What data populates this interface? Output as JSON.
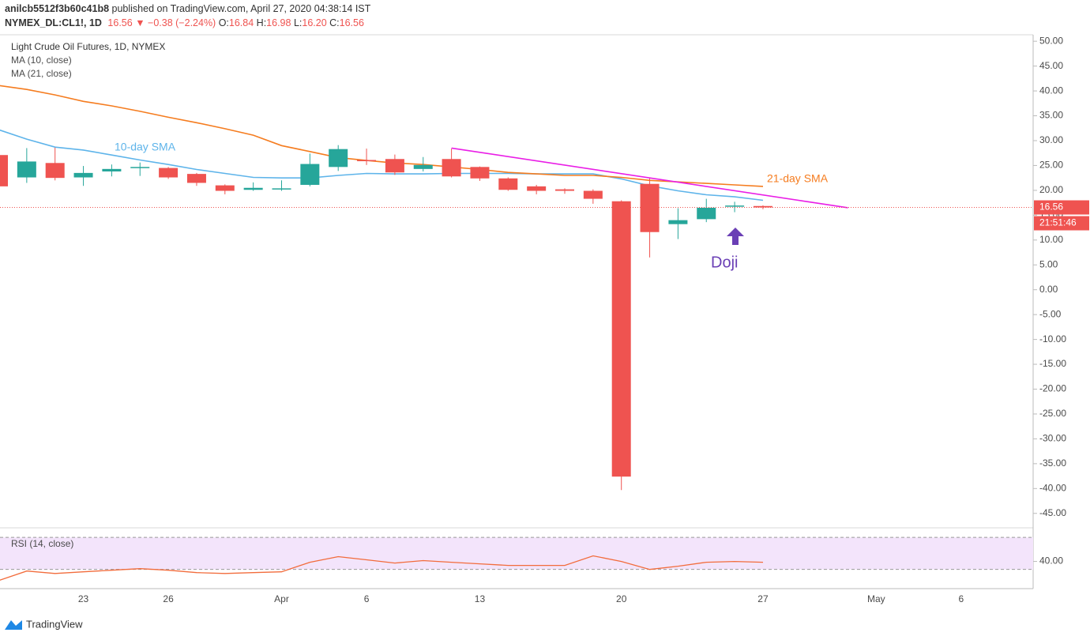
{
  "header": {
    "author": "anilcb5512f3b60c41b8",
    "published": "published on TradingView.com, April 27, 2020 04:38:14 IST",
    "symbol": "NYMEX_DL:CL1!, 1D",
    "last": "16.56",
    "arrow": "▼",
    "change": "−0.38 (−2.24%)",
    "open_label": "O:",
    "open": "16.84",
    "high_label": "H:",
    "high": "16.98",
    "low_label": "L:",
    "low": "16.20",
    "close_label": "C:",
    "close": "16.56"
  },
  "chart_data": [
    {
      "type": "candlestick",
      "title": "Light Crude Oil Futures, 1D, NYMEX",
      "categories": [
        null,
        null,
        null,
        "23",
        null,
        null,
        "26",
        null,
        null,
        null,
        "Apr",
        null,
        null,
        "6",
        null,
        null,
        null,
        "13",
        null,
        null,
        null,
        null,
        "20",
        null,
        null,
        null,
        null,
        "27",
        null,
        null,
        null,
        "May",
        null,
        null,
        "6"
      ],
      "open": [
        27.1,
        22.6,
        25.5,
        22.6,
        23.8,
        24.5,
        24.5,
        23.3,
        21.0,
        20.1,
        20.2,
        21.1,
        24.7,
        26.1,
        26.3,
        24.3,
        26.3,
        24.7,
        22.4,
        20.8,
        20.2,
        19.9,
        17.8,
        21.3,
        13.2,
        14.2,
        16.8,
        16.84,
        null,
        null,
        null,
        null,
        null,
        null,
        null
      ],
      "high": [
        27.4,
        28.5,
        28.6,
        24.9,
        25.2,
        25.6,
        24.7,
        23.5,
        21.2,
        21.6,
        22.0,
        27.4,
        29.1,
        28.4,
        27.2,
        26.7,
        28.4,
        24.8,
        22.6,
        21.1,
        20.4,
        20.2,
        18.0,
        22.6,
        16.4,
        18.3,
        17.7,
        16.98,
        null,
        null,
        null,
        null,
        null,
        null,
        null
      ],
      "low": [
        20.4,
        21.5,
        22.0,
        20.9,
        22.8,
        22.9,
        22.3,
        20.9,
        19.2,
        19.9,
        19.9,
        20.8,
        23.9,
        25.1,
        23.1,
        23.8,
        22.6,
        21.9,
        19.9,
        19.2,
        19.3,
        17.3,
        -40.3,
        6.5,
        10.2,
        13.6,
        15.6,
        16.2,
        null,
        null,
        null,
        null,
        null,
        null,
        null
      ],
      "close": [
        20.8,
        25.8,
        22.5,
        23.5,
        24.3,
        24.7,
        22.6,
        21.5,
        19.9,
        20.5,
        20.4,
        25.3,
        28.3,
        25.9,
        23.6,
        25.1,
        22.8,
        22.4,
        20.1,
        19.9,
        19.9,
        18.3,
        -37.6,
        11.6,
        14.0,
        16.5,
        16.94,
        16.56,
        null,
        null,
        null,
        null,
        null,
        null,
        null
      ],
      "up_color": "#26a69a",
      "down_color": "#ef5350",
      "series": [
        {
          "name": "MA (10, close)",
          "color": "#5eb4ea",
          "values": [
            32.2,
            30.3,
            28.7,
            28.1,
            27.1,
            26.1,
            25.2,
            24.2,
            23.4,
            22.6,
            22.5,
            22.5,
            23.0,
            23.4,
            23.3,
            23.3,
            23.4,
            23.4,
            23.4,
            23.3,
            23.3,
            23.3,
            22.3,
            20.9,
            19.9,
            19.1,
            18.7,
            18.0,
            null,
            null,
            null,
            null,
            null,
            null,
            null
          ]
        },
        {
          "name": "MA (21, close)",
          "color": "#f57c1f",
          "values": [
            41.1,
            40.3,
            39.2,
            37.9,
            37.0,
            35.9,
            34.7,
            33.6,
            32.4,
            31.1,
            29.0,
            27.8,
            26.6,
            26.0,
            25.5,
            25.2,
            24.7,
            24.2,
            23.6,
            23.3,
            23.0,
            23.0,
            22.6,
            22.0,
            21.7,
            21.4,
            21.1,
            20.8,
            null,
            null,
            null,
            null,
            null,
            null,
            null
          ]
        }
      ],
      "trendline": {
        "color": "#e91ee6",
        "x": [
          16,
          30
        ],
        "values": [
          28.5,
          16.5
        ]
      },
      "last_price": 16.56,
      "countdown": "21:51:46",
      "annotations": [
        "10-day SMA",
        "21-day SMA",
        "Doji"
      ],
      "ylim": [
        -47.9,
        51.3
      ],
      "yticks": [
        {
          "value": 50,
          "label": "50.00"
        },
        {
          "value": 45,
          "label": "45.00"
        },
        {
          "value": 40,
          "label": "40.00"
        },
        {
          "value": 35,
          "label": "35.00"
        },
        {
          "value": 30,
          "label": "30.00"
        },
        {
          "value": 25,
          "label": "25.00"
        },
        {
          "value": 20,
          "label": "20.00"
        },
        {
          "value": 15,
          "label": "15.00"
        },
        {
          "value": 10,
          "label": "10.00"
        },
        {
          "value": 5,
          "label": "5.00"
        },
        {
          "value": 0,
          "label": "0.00"
        },
        {
          "value": -5,
          "label": "-5.00"
        },
        {
          "value": -10,
          "label": "-10.00"
        },
        {
          "value": -15,
          "label": "-15.00"
        },
        {
          "value": -20,
          "label": "-20.00"
        },
        {
          "value": -25,
          "label": "-25.00"
        },
        {
          "value": -30,
          "label": "-30.00"
        },
        {
          "value": -35,
          "label": "-35.00"
        },
        {
          "value": -40,
          "label": "-40.00"
        },
        {
          "value": -45,
          "label": "-45.00"
        }
      ]
    },
    {
      "type": "line",
      "title": "RSI (14, close)",
      "color": "#f26c3c",
      "values": [
        16,
        28,
        25,
        27,
        29,
        31,
        29,
        26,
        25,
        26,
        27,
        39,
        46,
        42,
        38,
        41,
        39,
        37,
        35,
        35,
        35,
        47,
        40,
        30,
        34,
        39,
        40,
        39
      ],
      "band": [
        30,
        70
      ],
      "band_color": "#f3e4fb",
      "ylim": [
        6,
        82
      ],
      "yticks": [
        {
          "value": 40,
          "label": "40.00"
        }
      ]
    }
  ],
  "footer": "TradingView"
}
